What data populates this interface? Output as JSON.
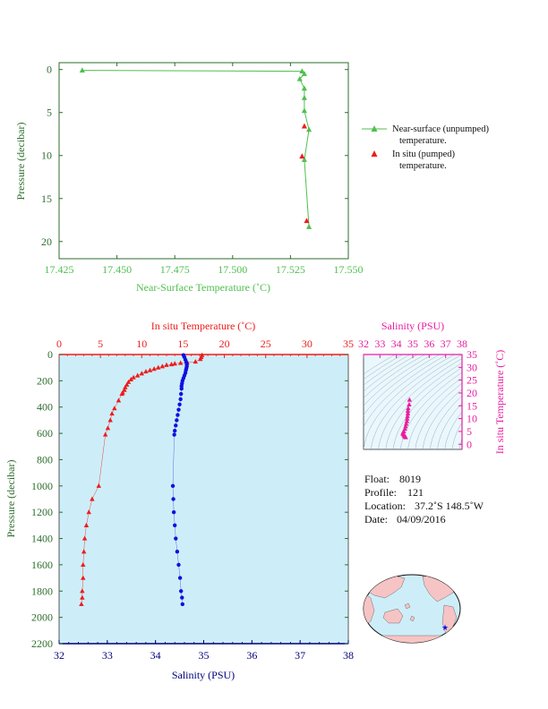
{
  "chart_data": [
    {
      "type": "line",
      "xlabel": "Near-Surface Temperature (˚C)",
      "ylabel": "Pressure (decibar)",
      "xlim": [
        17.425,
        17.55
      ],
      "ylim": [
        22,
        -0.8
      ],
      "x_ticks": [
        "17.425",
        "17.450",
        "17.475",
        "17.500",
        "17.525",
        "17.550"
      ],
      "y_ticks": [
        "0",
        "5",
        "10",
        "15",
        "20"
      ],
      "legend_position": "right",
      "series": [
        {
          "name": "Near-surface (unpumped) temperature.",
          "color": "#4fbf4f",
          "marker": "triangle",
          "points": [
            [
              17.435,
              0.1
            ],
            [
              17.53,
              0.2
            ],
            [
              17.531,
              0.5
            ],
            [
              17.529,
              1.1
            ],
            [
              17.531,
              2.2
            ],
            [
              17.531,
              3.3
            ],
            [
              17.531,
              4.8
            ],
            [
              17.533,
              7.0
            ],
            [
              17.531,
              10.5
            ],
            [
              17.533,
              18.3
            ]
          ]
        },
        {
          "name": "In situ (pumped) temperature.",
          "color": "#ee1c1c",
          "marker": "triangle",
          "points": [
            [
              17.531,
              6.6
            ],
            [
              17.53,
              10.1
            ],
            [
              17.532,
              17.6
            ]
          ]
        }
      ]
    },
    {
      "type": "scatter",
      "title_top": "In situ Temperature (˚C)",
      "xlabel": "Salinity (PSU)",
      "ylabel": "Pressure (decibar)",
      "temperature_axis": [
        0,
        35
      ],
      "salinity_axis": [
        32,
        38
      ],
      "ylim": [
        2200,
        0
      ],
      "temperature_ticks": [
        "0",
        "5",
        "10",
        "15",
        "20",
        "25",
        "30",
        "35"
      ],
      "salinity_ticks": [
        "32",
        "33",
        "34",
        "35",
        "36",
        "37",
        "38"
      ],
      "pressure_ticks": [
        "0",
        "200",
        "400",
        "600",
        "800",
        "1000",
        "1200",
        "1400",
        "1600",
        "1800",
        "2000",
        "2200"
      ],
      "background": "#cdeef8",
      "series": [
        {
          "name": "In situ temperature",
          "color": "#ee1c1c",
          "marker": "triangle",
          "points": [
            [
              17.3,
              5
            ],
            [
              17.2,
              20
            ],
            [
              17.1,
              35
            ],
            [
              16.5,
              55
            ],
            [
              15.5,
              60
            ],
            [
              14.7,
              65
            ],
            [
              14.0,
              70
            ],
            [
              13.6,
              75
            ],
            [
              13.0,
              80
            ],
            [
              12.5,
              90
            ],
            [
              12.0,
              100
            ],
            [
              11.5,
              110
            ],
            [
              11.0,
              120
            ],
            [
              10.5,
              130
            ],
            [
              10.0,
              145
            ],
            [
              9.5,
              160
            ],
            [
              9.0,
              175
            ],
            [
              8.7,
              190
            ],
            [
              8.4,
              210
            ],
            [
              8.2,
              230
            ],
            [
              8.0,
              250
            ],
            [
              7.9,
              270
            ],
            [
              7.7,
              290
            ],
            [
              7.6,
              300
            ],
            [
              7.2,
              350
            ],
            [
              6.7,
              410
            ],
            [
              6.4,
              450
            ],
            [
              6.2,
              500
            ],
            [
              5.9,
              560
            ],
            [
              5.6,
              610
            ],
            [
              4.8,
              1000
            ],
            [
              4.0,
              1100
            ],
            [
              3.6,
              1200
            ],
            [
              3.3,
              1300
            ],
            [
              3.1,
              1400
            ],
            [
              3.0,
              1500
            ],
            [
              2.9,
              1600
            ],
            [
              2.9,
              1700
            ],
            [
              2.8,
              1800
            ],
            [
              2.8,
              1850
            ],
            [
              2.7,
              1900
            ]
          ]
        },
        {
          "name": "Salinity",
          "color": "#1010e0",
          "marker": "circle",
          "points": [
            [
              34.58,
              5
            ],
            [
              34.6,
              20
            ],
            [
              34.62,
              40
            ],
            [
              34.64,
              60
            ],
            [
              34.65,
              75
            ],
            [
              34.65,
              90
            ],
            [
              34.64,
              105
            ],
            [
              34.63,
              120
            ],
            [
              34.62,
              140
            ],
            [
              34.6,
              160
            ],
            [
              34.58,
              180
            ],
            [
              34.56,
              200
            ],
            [
              34.55,
              220
            ],
            [
              34.54,
              240
            ],
            [
              34.54,
              260
            ],
            [
              34.53,
              300
            ],
            [
              34.52,
              340
            ],
            [
              34.5,
              380
            ],
            [
              34.48,
              420
            ],
            [
              34.46,
              460
            ],
            [
              34.44,
              500
            ],
            [
              34.42,
              540
            ],
            [
              34.4,
              580
            ],
            [
              34.39,
              610
            ],
            [
              34.36,
              1000
            ],
            [
              34.37,
              1100
            ],
            [
              34.38,
              1200
            ],
            [
              34.4,
              1300
            ],
            [
              34.42,
              1400
            ],
            [
              34.45,
              1500
            ],
            [
              34.48,
              1600
            ],
            [
              34.51,
              1700
            ],
            [
              34.53,
              1800
            ],
            [
              34.55,
              1850
            ],
            [
              34.56,
              1900
            ]
          ]
        }
      ]
    },
    {
      "type": "scatter",
      "title": "Salinity (PSU)",
      "ylabel": "In situ Temperature (˚C)",
      "salinity_axis": [
        32,
        38
      ],
      "temperature_axis": [
        -2,
        35
      ],
      "salinity_ticks": [
        "32",
        "33",
        "34",
        "35",
        "36",
        "37",
        "38"
      ],
      "temperature_ticks": [
        "0",
        "5",
        "10",
        "15",
        "20",
        "25",
        "30",
        "35"
      ],
      "color": "#e81ea0",
      "points": [
        [
          34.8,
          17.3
        ],
        [
          34.78,
          15.5
        ],
        [
          34.72,
          14.0
        ],
        [
          34.7,
          13.0
        ],
        [
          34.7,
          12.0
        ],
        [
          34.68,
          11.0
        ],
        [
          34.66,
          10.0
        ],
        [
          34.64,
          9.0
        ],
        [
          34.6,
          8.0
        ],
        [
          34.56,
          7.0
        ],
        [
          34.52,
          6.0
        ],
        [
          34.45,
          5.0
        ],
        [
          34.4,
          4.5
        ],
        [
          34.4,
          4.0
        ],
        [
          34.45,
          3.5
        ],
        [
          34.5,
          3.1
        ],
        [
          34.55,
          2.9
        ],
        [
          34.56,
          2.7
        ]
      ]
    }
  ],
  "float_info": {
    "float_label": "Float:",
    "float_value": "8019",
    "profile_label": "Profile:",
    "profile_value": "121",
    "location_label": "Location:",
    "location_value": "37.2˚S  148.5˚W",
    "date_label": "Date:",
    "date_value": "04/09/2016"
  },
  "colors": {
    "green": "#4fbf4f",
    "red": "#ee1c1c",
    "blue": "#1010e0",
    "magenta": "#e81ea0",
    "navy": "#00007a",
    "dark_green_axis": "#2e6e2e",
    "plot_bg": "#cdeef8",
    "land": "#f6c4c4",
    "ocean": "#cdeef8"
  }
}
